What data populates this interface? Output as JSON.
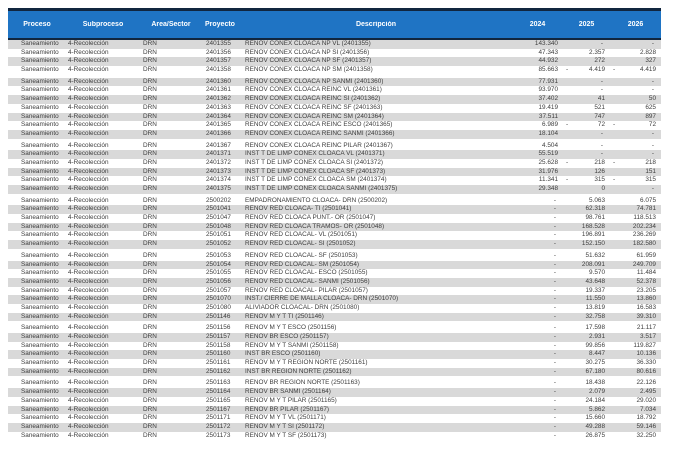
{
  "colors": {
    "header_bg": "#1F74C4",
    "header_fg": "#FFFFFF",
    "border_dark": "#11263F",
    "stripe_gray": "#D9D9D9"
  },
  "table": {
    "columns": [
      {
        "key": "proceso",
        "label": "Proceso"
      },
      {
        "key": "subproceso",
        "label": "Subproceso"
      },
      {
        "key": "area-sector",
        "label": "Área/Sector"
      },
      {
        "key": "proyecto",
        "label": "Proyecto"
      },
      {
        "key": "descripcion",
        "label": "Descripción"
      },
      {
        "key": "2024",
        "label": "2024"
      },
      {
        "key": "2025",
        "label": "2025"
      },
      {
        "key": "2026",
        "label": "2026"
      }
    ],
    "rows": [
      [
        "Saneamiento",
        "4-Recolección",
        "DRN",
        "2401355",
        "RENOV CONEX CLOACA NP VL (2401355)",
        "143.340",
        "-",
        "-"
      ],
      [
        "Saneamiento",
        "4-Recolección",
        "DRN",
        "2401356",
        "RENOV CONEX CLOACA NP SI (2401356)",
        "47.343",
        "2.357",
        "2.828"
      ],
      [
        "Saneamiento",
        "4-Recolección",
        "DRN",
        "2401357",
        "RENOV CONEX CLOACA NP SF (2401357)",
        "44.932",
        "272",
        "327"
      ],
      [
        "Saneamiento",
        "4-Recolección",
        "DRN",
        "2401358",
        "RENOV CONEX CLOACA NP SM (2401358)",
        "85.663",
        "-4.419",
        "-4.419"
      ],
      [
        "Saneamiento",
        "4-Recolección",
        "DRN",
        "2401360",
        "RENOV CONEX CLOACA NP SANMI (2401360)",
        "77.931",
        "-",
        "-"
      ],
      [
        "Saneamiento",
        "4-Recolección",
        "DRN",
        "2401361",
        "RENOV CONEX CLOACA REINC VL (2401361)",
        "93.970",
        "-",
        "-"
      ],
      [
        "Saneamiento",
        "4-Recolección",
        "DRN",
        "2401362",
        "RENOV CONEX CLOACA REINC SI (2401362)",
        "37.402",
        "41",
        "50"
      ],
      [
        "Saneamiento",
        "4-Recolección",
        "DRN",
        "2401363",
        "RENOV CONEX CLOACA REINC SF (2401363)",
        "19.419",
        "521",
        "625"
      ],
      [
        "Saneamiento",
        "4-Recolección",
        "DRN",
        "2401364",
        "RENOV CONEX CLOACA REINC SM (2401364)",
        "37.511",
        "747",
        "897"
      ],
      [
        "Saneamiento",
        "4-Recolección",
        "DRN",
        "2401365",
        "RENOV CONEX CLOACA REINC ESCO (2401365)",
        "6.989",
        "-72",
        "-72"
      ],
      [
        "Saneamiento",
        "4-Recolección",
        "DRN",
        "2401366",
        "RENOV CONEX CLOACA REINC SANMI (2401366)",
        "18.104",
        "-",
        "-"
      ],
      [
        "Saneamiento",
        "4-Recolección",
        "DRN",
        "2401367",
        "RENOV CONEX CLOACA REINC PILAR (2401367)",
        "4.504",
        "-",
        "-"
      ],
      [
        "Saneamiento",
        "4-Recolección",
        "DRN",
        "2401371",
        "INST T DE LIMP CONEX CLOACA VL (2401371)",
        "55.519",
        "-",
        "-"
      ],
      [
        "Saneamiento",
        "4-Recolección",
        "DRN",
        "2401372",
        "INST T DE LIMP CONEX CLOACA SI (2401372)",
        "25.628",
        "-218",
        "-218"
      ],
      [
        "Saneamiento",
        "4-Recolección",
        "DRN",
        "2401373",
        "INST T DE LIMP CONEX CLOACA SF (2401373)",
        "31.976",
        "126",
        "151"
      ],
      [
        "Saneamiento",
        "4-Recolección",
        "DRN",
        "2401374",
        "INST T DE LIMP CONEX CLOACA SM (2401374)",
        "11.341",
        "-315",
        "-315"
      ],
      [
        "Saneamiento",
        "4-Recolección",
        "DRN",
        "2401375",
        "INST T DE LIMP CONEX CLOACA SANMI (2401375)",
        "29.348",
        "0",
        "-"
      ],
      [
        "Saneamiento",
        "4-Recolección",
        "DRN",
        "2500202",
        "EMPADRONAMIENTO CLOACA- DRN (2500202)",
        "-",
        "5.063",
        "6.075"
      ],
      [
        "Saneamiento",
        "4-Recolección",
        "DRN",
        "2501041",
        "RENOV RED CLOACA- TI (2501041)",
        "-",
        "62.318",
        "74.781"
      ],
      [
        "Saneamiento",
        "4-Recolección",
        "DRN",
        "2501047",
        "RENOV RED CLOACA PUNT.- OR (2501047)",
        "-",
        "98.761",
        "118.513"
      ],
      [
        "Saneamiento",
        "4-Recolección",
        "DRN",
        "2501048",
        "RENOV RED CLOACA TRAMOS- OR (2501048)",
        "-",
        "168.528",
        "202.234"
      ],
      [
        "Saneamiento",
        "4-Recolección",
        "DRN",
        "2501051",
        "RENOV RED CLOACAL- VL (2501051)",
        "-",
        "196.891",
        "236.269"
      ],
      [
        "Saneamiento",
        "4-Recolección",
        "DRN",
        "2501052",
        "RENOV RED CLOACAL- SI (2501052)",
        "-",
        "152.150",
        "182.580"
      ],
      [
        "Saneamiento",
        "4-Recolección",
        "DRN",
        "2501053",
        "RENOV RED CLOACAL- SF (2501053)",
        "-",
        "51.632",
        "61.959"
      ],
      [
        "Saneamiento",
        "4-Recolección",
        "DRN",
        "2501054",
        "RENOV RED CLOACAL- SM (2501054)",
        "-",
        "208.091",
        "249.709"
      ],
      [
        "Saneamiento",
        "4-Recolección",
        "DRN",
        "2501055",
        "RENOV RED CLOACAL- ESCO (2501055)",
        "-",
        "9.570",
        "11.484"
      ],
      [
        "Saneamiento",
        "4-Recolección",
        "DRN",
        "2501056",
        "RENOV RED CLOACAL- SANMI (2501056)",
        "-",
        "43.648",
        "52.378"
      ],
      [
        "Saneamiento",
        "4-Recolección",
        "DRN",
        "2501057",
        "RENOV RED CLOACAL- PILAR (2501057)",
        "-",
        "19.337",
        "23.205"
      ],
      [
        "Saneamiento",
        "4-Recolección",
        "DRN",
        "2501070",
        "INST./ CIERRE DE MALLA CLOACA- DRN (2501070)",
        "-",
        "11.550",
        "13.860"
      ],
      [
        "Saneamiento",
        "4-Recolección",
        "DRN",
        "2501080",
        "ALIVIADOR CLOACAL- DRN (2501080)",
        "-",
        "13.819",
        "16.583"
      ],
      [
        "Saneamiento",
        "4-Recolección",
        "DRN",
        "2501146",
        "RENOV M Y T TI (2501146)",
        "-",
        "32.758",
        "39.310"
      ],
      [
        "Saneamiento",
        "4-Recolección",
        "DRN",
        "2501156",
        "RENOV M Y T ESCO (2501156)",
        "-",
        "17.598",
        "21.117"
      ],
      [
        "Saneamiento",
        "4-Recolección",
        "DRN",
        "2501157",
        "RENOV BR ESCO (2501157)",
        "-",
        "2.931",
        "3.517"
      ],
      [
        "Saneamiento",
        "4-Recolección",
        "DRN",
        "2501158",
        "RENOV M Y T SANMI (2501158)",
        "-",
        "99.856",
        "119.827"
      ],
      [
        "Saneamiento",
        "4-Recolección",
        "DRN",
        "2501160",
        "INST BR ESCO (2501160)",
        "-",
        "8.447",
        "10.136"
      ],
      [
        "Saneamiento",
        "4-Recolección",
        "DRN",
        "2501161",
        "RENOV M Y T REGION NORTE (2501161)",
        "-",
        "30.275",
        "36.330"
      ],
      [
        "Saneamiento",
        "4-Recolección",
        "DRN",
        "2501162",
        "INST BR REGION NORTE (2501162)",
        "-",
        "67.180",
        "80.616"
      ],
      [
        "Saneamiento",
        "4-Recolección",
        "DRN",
        "2501163",
        "RENOV BR REGION NORTE (2501163)",
        "-",
        "18.438",
        "22.126"
      ],
      [
        "Saneamiento",
        "4-Recolección",
        "DRN",
        "2501164",
        "RENOV BR SANMI (2501164)",
        "-",
        "2.079",
        "2.495"
      ],
      [
        "Saneamiento",
        "4-Recolección",
        "DRN",
        "2501165",
        "RENOV M Y T PILAR (2501165)",
        "-",
        "24.184",
        "29.020"
      ],
      [
        "Saneamiento",
        "4-Recolección",
        "DRN",
        "2501167",
        "RENOV BR PILAR (2501167)",
        "-",
        "5.862",
        "7.034"
      ],
      [
        "Saneamiento",
        "4-Recolección",
        "DRN",
        "2501171",
        "RENOV M Y T VL (2501171)",
        "-",
        "15.660",
        "18.792"
      ],
      [
        "Saneamiento",
        "4-Recolección",
        "DRN",
        "2501172",
        "RENOV M Y T SI (2501172)",
        "-",
        "49.288",
        "59.146"
      ],
      [
        "Saneamiento",
        "4-Recolección",
        "DRN",
        "2501173",
        "RENOV M Y T SF (2501173)",
        "-",
        "26.875",
        "32.250"
      ]
    ],
    "group_gap_after_row_indices": [
      3,
      10,
      16,
      22,
      30,
      36
    ]
  }
}
